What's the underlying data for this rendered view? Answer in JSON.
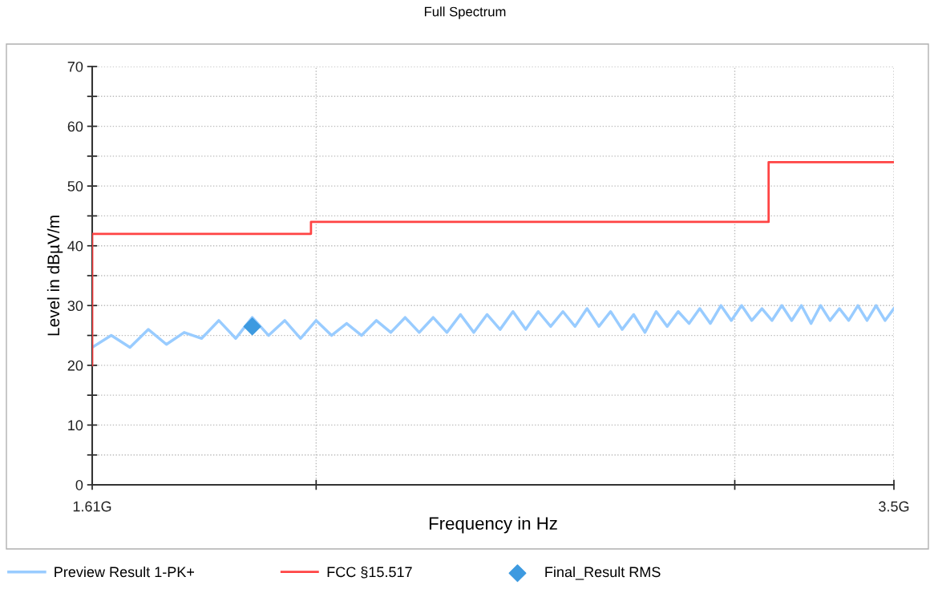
{
  "chart_data": {
    "type": "line",
    "title": "Full Spectrum",
    "xlabel": "Frequency in Hz",
    "ylabel": "Level in dBµV/m",
    "log": "x",
    "xlim": [
      1.61,
      3.5
    ],
    "xticks": [
      {
        "value": 1.61,
        "label": "1.61G"
      },
      {
        "value": 2,
        "label": null
      },
      {
        "value": 3,
        "label": null
      },
      {
        "value": 3.5,
        "label": "3.5G"
      }
    ],
    "ylim": [
      0,
      70
    ],
    "yticks": [
      0,
      {
        "value": 5,
        "label": null
      },
      10,
      {
        "value": 15,
        "label": null
      },
      20,
      {
        "value": 25,
        "label": null
      },
      30,
      {
        "value": 35,
        "label": null
      },
      40,
      {
        "value": 45,
        "label": null
      },
      50,
      {
        "value": 55,
        "label": null
      },
      60,
      {
        "value": 65,
        "label": null
      },
      70
    ],
    "grid": true,
    "legend": "bottom",
    "line_style": "solid",
    "series": [
      {
        "name": "Preview Result 1-PK+",
        "color": "#99ccff",
        "x": [
          1.61,
          1.64,
          1.67,
          1.7,
          1.73,
          1.76,
          1.79,
          1.82,
          1.85,
          1.88,
          1.91,
          1.94,
          1.97,
          2.0,
          2.03,
          2.06,
          2.09,
          2.12,
          2.15,
          2.18,
          2.21,
          2.24,
          2.27,
          2.3,
          2.33,
          2.36,
          2.39,
          2.42,
          2.45,
          2.48,
          2.51,
          2.54,
          2.57,
          2.6,
          2.63,
          2.66,
          2.69,
          2.72,
          2.75,
          2.78,
          2.81,
          2.84,
          2.87,
          2.9,
          2.93,
          2.96,
          2.99,
          3.02,
          3.05,
          3.08,
          3.11,
          3.14,
          3.17,
          3.2,
          3.23,
          3.26,
          3.29,
          3.32,
          3.35,
          3.38,
          3.41,
          3.44,
          3.47,
          3.5
        ],
        "values": [
          23,
          25,
          23,
          26,
          23.5,
          25.5,
          24.5,
          27.5,
          24.5,
          28,
          25,
          27.5,
          24.5,
          27.5,
          25,
          27,
          25,
          27.5,
          25.5,
          28,
          25.5,
          28,
          25.5,
          28.5,
          25.5,
          28.5,
          26,
          29,
          26,
          29,
          26.5,
          29,
          26.5,
          29.5,
          26.5,
          29,
          26,
          28.5,
          25.5,
          29,
          26.5,
          29,
          27,
          29.5,
          27,
          30,
          27.5,
          30,
          27.5,
          29.5,
          27.5,
          30,
          27.5,
          30,
          27,
          30,
          27.5,
          29.5,
          27.5,
          30,
          27.5,
          30,
          27.5,
          29.5
        ]
      },
      {
        "name": "FCC §15.517",
        "type": "step",
        "color": "#ff4444",
        "x": [
          1.61,
          1.61,
          1.99,
          3.1,
          3.5
        ],
        "values": [
          20,
          42,
          44,
          54,
          54
        ]
      },
      {
        "name": "Final_Result RMS",
        "type": "scatter",
        "color": "#3d9ae0",
        "marker": "diamond",
        "x": [
          1.88
        ],
        "values": [
          26.5
        ]
      }
    ]
  }
}
